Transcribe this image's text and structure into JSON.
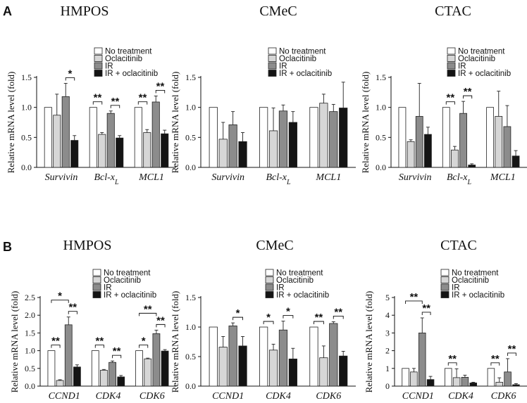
{
  "figure": {
    "panel_labels": [
      "A",
      "B"
    ]
  },
  "legend": {
    "entries": [
      {
        "name": "No treatment",
        "color": "#ffffff"
      },
      {
        "name": "Oclacitinib",
        "color": "#d6d6d6"
      },
      {
        "name": "IR",
        "color": "#8c8c8c"
      },
      {
        "name": "IR + oclacitinib",
        "color": "#141414"
      }
    ]
  },
  "chart_data": [
    {
      "type": "bar",
      "panel": "A",
      "title": "HMPOS",
      "ylabel": "Relative mRNA level (fold)",
      "ylim": [
        0,
        1.5
      ],
      "yticks": [
        "0.0",
        "0.5",
        "1.0",
        "1.5"
      ],
      "categories": [
        "Survivin",
        "Bcl-xL",
        "MCL1"
      ],
      "series": [
        {
          "name": "No treatment",
          "values": [
            1.0,
            1.0,
            1.0
          ],
          "errors": [
            0,
            0,
            0
          ]
        },
        {
          "name": "Oclacitinib",
          "values": [
            0.87,
            0.55,
            0.58
          ],
          "errors": [
            0.35,
            0.03,
            0.05
          ]
        },
        {
          "name": "IR",
          "values": [
            1.18,
            0.9,
            1.09
          ],
          "errors": [
            0.22,
            0.04,
            0.1
          ]
        },
        {
          "name": "IR + oclacitinib",
          "values": [
            0.45,
            0.49,
            0.56
          ],
          "errors": [
            0.08,
            0.04,
            0.06
          ]
        }
      ],
      "annotations": [
        {
          "category": 0,
          "from": 2,
          "to": 3,
          "label": "*"
        },
        {
          "category": 1,
          "from": 0,
          "to": 1,
          "label": "**"
        },
        {
          "category": 1,
          "from": 2,
          "to": 3,
          "label": "**"
        },
        {
          "category": 2,
          "from": 0,
          "to": 1,
          "label": "**"
        },
        {
          "category": 2,
          "from": 2,
          "to": 3,
          "label": "**"
        }
      ]
    },
    {
      "type": "bar",
      "panel": "A",
      "title": "CMeC",
      "ylabel": "Relative mRNA level (fold)",
      "ylim": [
        0,
        1.5
      ],
      "yticks": [
        "0.0",
        "0.5",
        "1.0",
        "1.5"
      ],
      "categories": [
        "Survivin",
        "Bcl-xL",
        "MCL1"
      ],
      "series": [
        {
          "name": "No treatment",
          "values": [
            1.0,
            1.0,
            1.0
          ],
          "errors": [
            0,
            0,
            0
          ]
        },
        {
          "name": "Oclacitinib",
          "values": [
            0.47,
            0.61,
            1.07
          ],
          "errors": [
            0.28,
            0.38,
            0.15
          ]
        },
        {
          "name": "IR",
          "values": [
            0.71,
            0.94,
            0.93
          ],
          "errors": [
            0.22,
            0.1,
            0.12
          ]
        },
        {
          "name": "IR + oclacitinib",
          "values": [
            0.43,
            0.75,
            0.99
          ],
          "errors": [
            0.15,
            0.18,
            0.43
          ]
        }
      ],
      "annotations": []
    },
    {
      "type": "bar",
      "panel": "A",
      "title": "CTAC",
      "ylabel": "Relative mRNA level (fold)",
      "ylim": [
        0,
        1.5
      ],
      "yticks": [
        "0.0",
        "0.5",
        "1.0",
        "1.5"
      ],
      "categories": [
        "Survivin",
        "Bcl-xL",
        "MCL1"
      ],
      "series": [
        {
          "name": "No treatment",
          "values": [
            1.0,
            1.0,
            1.0
          ],
          "errors": [
            0,
            0,
            0
          ]
        },
        {
          "name": "Oclacitinib",
          "values": [
            0.43,
            0.29,
            0.85
          ],
          "errors": [
            0.03,
            0.06,
            0.42
          ]
        },
        {
          "name": "IR",
          "values": [
            0.85,
            0.9,
            0.68
          ],
          "errors": [
            0.55,
            0.2,
            0.35
          ]
        },
        {
          "name": "IR + oclacitinib",
          "values": [
            0.55,
            0.04,
            0.19
          ],
          "errors": [
            0.12,
            0.02,
            0.09
          ]
        }
      ],
      "annotations": [
        {
          "category": 1,
          "from": 0,
          "to": 1,
          "label": "**"
        },
        {
          "category": 1,
          "from": 2,
          "to": 3,
          "label": "**"
        }
      ]
    },
    {
      "type": "bar",
      "panel": "B",
      "title": "HMPOS",
      "ylabel": "Relative mRNA level (fold)",
      "ylim": [
        0,
        2.5
      ],
      "yticks": [
        "0.0",
        "0.5",
        "1.0",
        "1.5",
        "2.0",
        "2.5"
      ],
      "categories": [
        "CCND1",
        "CDK4",
        "CDK6"
      ],
      "series": [
        {
          "name": "No treatment",
          "values": [
            1.0,
            1.0,
            1.0
          ],
          "errors": [
            0,
            0,
            0
          ]
        },
        {
          "name": "Oclacitinib",
          "values": [
            0.16,
            0.45,
            0.77
          ],
          "errors": [
            0.02,
            0.02,
            0.02
          ]
        },
        {
          "name": "IR",
          "values": [
            1.73,
            0.67,
            1.48
          ],
          "errors": [
            0.22,
            0.04,
            0.1
          ]
        },
        {
          "name": "IR + oclacitinib",
          "values": [
            0.54,
            0.26,
            0.99
          ],
          "errors": [
            0.06,
            0.04,
            0.04
          ]
        }
      ],
      "annotations": [
        {
          "category": 0,
          "from": 0,
          "to": 1,
          "label": "**"
        },
        {
          "category": 0,
          "from": 0,
          "to": 2,
          "label": "*",
          "row": 1
        },
        {
          "category": 0,
          "from": 2,
          "to": 3,
          "label": "**"
        },
        {
          "category": 1,
          "from": 0,
          "to": 1,
          "label": "**"
        },
        {
          "category": 1,
          "from": 2,
          "to": 3,
          "label": "**"
        },
        {
          "category": 2,
          "from": 0,
          "to": 1,
          "label": "*"
        },
        {
          "category": 2,
          "from": 0,
          "to": 2,
          "label": "**",
          "row": 1
        },
        {
          "category": 2,
          "from": 2,
          "to": 3,
          "label": "**"
        }
      ]
    },
    {
      "type": "bar",
      "panel": "B",
      "title": "CMeC",
      "ylabel": "Relative mRNA level (fold)",
      "ylim": [
        0,
        1.5
      ],
      "yticks": [
        "0.0",
        "0.5",
        "1.0",
        "1.5"
      ],
      "categories": [
        "CCND1",
        "CDK4",
        "CDK6"
      ],
      "series": [
        {
          "name": "No treatment",
          "values": [
            1.0,
            1.0,
            1.0
          ],
          "errors": [
            0,
            0,
            0
          ]
        },
        {
          "name": "Oclacitinib",
          "values": [
            0.66,
            0.61,
            0.48
          ],
          "errors": [
            0.18,
            0.1,
            0.2
          ]
        },
        {
          "name": "IR",
          "values": [
            1.02,
            0.95,
            1.06
          ],
          "errors": [
            0.05,
            0.15,
            0.03
          ]
        },
        {
          "name": "IR + oclacitinib",
          "values": [
            0.68,
            0.46,
            0.51
          ],
          "errors": [
            0.16,
            0.18,
            0.08
          ]
        }
      ],
      "annotations": [
        {
          "category": 0,
          "from": 2,
          "to": 3,
          "label": "*"
        },
        {
          "category": 1,
          "from": 0,
          "to": 1,
          "label": "*"
        },
        {
          "category": 1,
          "from": 2,
          "to": 3,
          "label": "*"
        },
        {
          "category": 2,
          "from": 0,
          "to": 1,
          "label": "**"
        },
        {
          "category": 2,
          "from": 2,
          "to": 3,
          "label": "**"
        }
      ]
    },
    {
      "type": "bar",
      "panel": "B",
      "title": "CTAC",
      "ylabel": "Relative mRNA level (fold)",
      "ylim": [
        0,
        5
      ],
      "yticks": [
        "0",
        "1",
        "2",
        "3",
        "4",
        "5"
      ],
      "categories": [
        "CCND1",
        "CDK4",
        "CDK6"
      ],
      "series": [
        {
          "name": "No treatment",
          "values": [
            1.0,
            1.0,
            1.0
          ],
          "errors": [
            0,
            0,
            0
          ]
        },
        {
          "name": "Oclacitinib",
          "values": [
            0.8,
            0.48,
            0.22
          ],
          "errors": [
            0.2,
            0.5,
            0.25
          ]
        },
        {
          "name": "IR",
          "values": [
            3.0,
            0.5,
            0.8
          ],
          "errors": [
            0.85,
            0.12,
            0.75
          ]
        },
        {
          "name": "IR + oclacitinib",
          "values": [
            0.37,
            0.18,
            0.08
          ],
          "errors": [
            0.18,
            0.04,
            0.06
          ]
        }
      ],
      "annotations": [
        {
          "category": 0,
          "from": 0,
          "to": 2,
          "label": "**",
          "row": 1
        },
        {
          "category": 0,
          "from": 2,
          "to": 3,
          "label": "**"
        },
        {
          "category": 1,
          "from": 0,
          "to": 1,
          "label": "**"
        },
        {
          "category": 2,
          "from": 0,
          "to": 1,
          "label": "**"
        },
        {
          "category": 2,
          "from": 2,
          "to": 3,
          "label": "**"
        }
      ]
    }
  ]
}
